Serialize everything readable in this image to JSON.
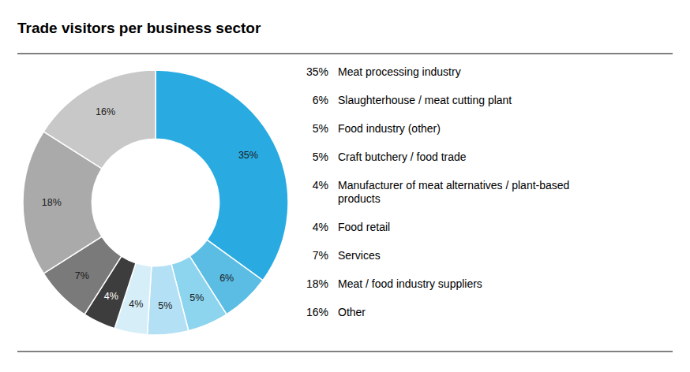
{
  "chart_data": {
    "type": "pie",
    "title": "Trade visitors per business sector",
    "categories": [
      "Meat processing industry",
      "Slaughterhouse / meat cutting plant",
      "Food industry (other)",
      "Craft butchery / food trade",
      "Manufacturer of meat alternatives / plant-based\nproducts",
      "Food retail",
      "Services",
      "Meat / food industry suppliers",
      "Other"
    ],
    "values": [
      35,
      6,
      5,
      5,
      4,
      4,
      7,
      18,
      16
    ],
    "value_labels": [
      "35%",
      "6%",
      "5%",
      "5%",
      "4%",
      "4%",
      "7%",
      "18%",
      "16%"
    ],
    "colors": [
      "#29ABE2",
      "#5BBDE4",
      "#8DD4EE",
      "#B3E0F4",
      "#D5EEF8",
      "#3D3D3D",
      "#7A7A7A",
      "#AAAAAA",
      "#C8C8C8"
    ],
    "data_labels": true,
    "legend": "right"
  }
}
